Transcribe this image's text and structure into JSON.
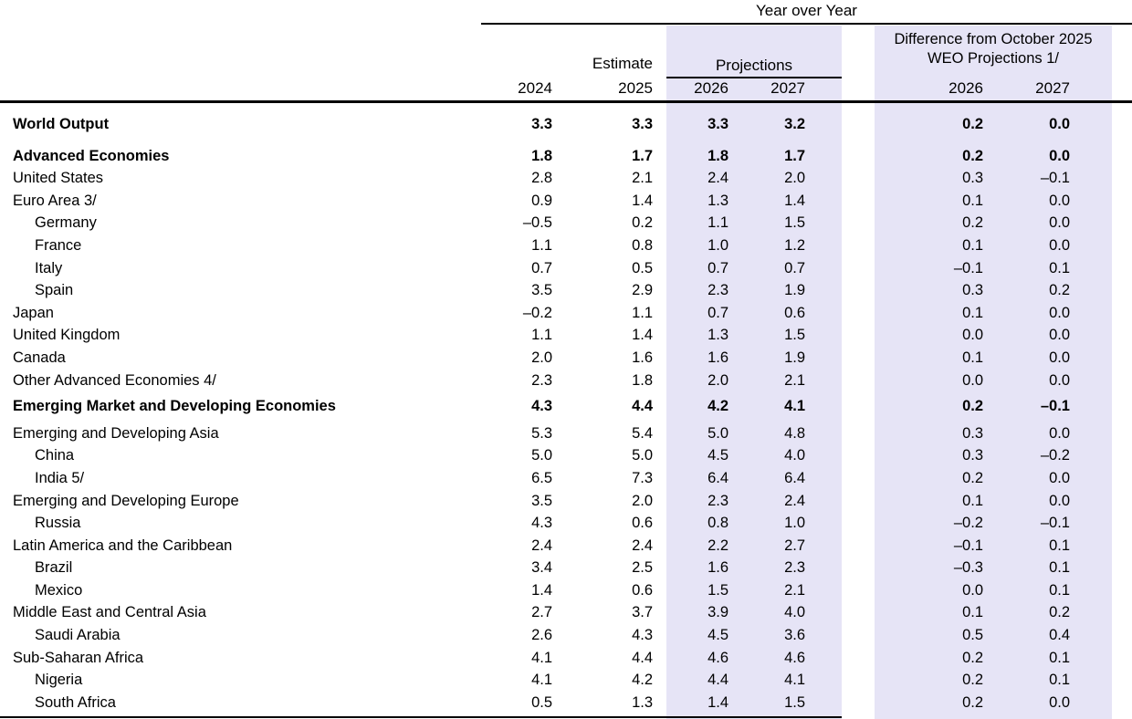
{
  "colors": {
    "highlight_band": "#E6E4F6",
    "rule": "#000000"
  },
  "table": {
    "top_header": "Year over Year",
    "estimate_label": "Estimate",
    "projections_label": "Projections",
    "difference_label_line1": "Difference from October 2025",
    "difference_label_line2": "WEO Projections 1/",
    "year_columns": [
      "2024",
      "2025",
      "2026",
      "2027",
      "2026",
      "2027"
    ],
    "rows": [
      {
        "label": "World Output",
        "bold": true,
        "indent": 0,
        "space_before": 0,
        "values": [
          "3.3",
          "3.3",
          "3.3",
          "3.2",
          "0.2",
          "0.0"
        ]
      },
      {
        "label": "Advanced Economies",
        "bold": true,
        "indent": 0,
        "space_before": 10,
        "values": [
          "1.8",
          "1.7",
          "1.8",
          "1.7",
          "0.2",
          "0.0"
        ]
      },
      {
        "label": "United States",
        "bold": false,
        "indent": 0,
        "space_before": 0,
        "values": [
          "2.8",
          "2.1",
          "2.4",
          "2.0",
          "0.3",
          "–0.1"
        ]
      },
      {
        "label": "Euro Area 3/",
        "bold": false,
        "indent": 0,
        "space_before": 0,
        "values": [
          "0.9",
          "1.4",
          "1.3",
          "1.4",
          "0.1",
          "0.0"
        ]
      },
      {
        "label": "Germany",
        "bold": false,
        "indent": 1,
        "space_before": 0,
        "values": [
          "–0.5",
          "0.2",
          "1.1",
          "1.5",
          "0.2",
          "0.0"
        ]
      },
      {
        "label": "France",
        "bold": false,
        "indent": 1,
        "space_before": 0,
        "values": [
          "1.1",
          "0.8",
          "1.0",
          "1.2",
          "0.1",
          "0.0"
        ]
      },
      {
        "label": "Italy",
        "bold": false,
        "indent": 1,
        "space_before": 0,
        "values": [
          "0.7",
          "0.5",
          "0.7",
          "0.7",
          "–0.1",
          "0.1"
        ]
      },
      {
        "label": "Spain",
        "bold": false,
        "indent": 1,
        "space_before": 0,
        "values": [
          "3.5",
          "2.9",
          "2.3",
          "1.9",
          "0.3",
          "0.2"
        ]
      },
      {
        "label": "Japan",
        "bold": false,
        "indent": 0,
        "space_before": 0,
        "values": [
          "–0.2",
          "1.1",
          "0.7",
          "0.6",
          "0.1",
          "0.0"
        ]
      },
      {
        "label": "United Kingdom",
        "bold": false,
        "indent": 0,
        "space_before": 0,
        "values": [
          "1.1",
          "1.4",
          "1.3",
          "1.5",
          "0.0",
          "0.0"
        ]
      },
      {
        "label": "Canada",
        "bold": false,
        "indent": 0,
        "space_before": 0,
        "values": [
          "2.0",
          "1.6",
          "1.6",
          "1.9",
          "0.1",
          "0.0"
        ]
      },
      {
        "label": "Other Advanced Economies 4/",
        "bold": false,
        "indent": 0,
        "space_before": 0,
        "values": [
          "2.3",
          "1.8",
          "2.0",
          "2.1",
          "0.0",
          "0.0"
        ]
      },
      {
        "label": "Emerging Market and Developing Economies",
        "bold": true,
        "indent": 0,
        "space_before": 4,
        "values": [
          "4.3",
          "4.4",
          "4.2",
          "4.1",
          "0.2",
          "–0.1"
        ]
      },
      {
        "label": "Emerging and Developing Asia",
        "bold": false,
        "indent": 0,
        "space_before": 5,
        "values": [
          "5.3",
          "5.4",
          "5.0",
          "4.8",
          "0.3",
          "0.0"
        ]
      },
      {
        "label": "China",
        "bold": false,
        "indent": 1,
        "space_before": 0,
        "values": [
          "5.0",
          "5.0",
          "4.5",
          "4.0",
          "0.3",
          "–0.2"
        ]
      },
      {
        "label": "India 5/",
        "bold": false,
        "indent": 1,
        "space_before": 0,
        "values": [
          "6.5",
          "7.3",
          "6.4",
          "6.4",
          "0.2",
          "0.0"
        ]
      },
      {
        "label": "Emerging and Developing Europe",
        "bold": false,
        "indent": 0,
        "space_before": 0,
        "values": [
          "3.5",
          "2.0",
          "2.3",
          "2.4",
          "0.1",
          "0.0"
        ]
      },
      {
        "label": "Russia",
        "bold": false,
        "indent": 1,
        "space_before": 0,
        "values": [
          "4.3",
          "0.6",
          "0.8",
          "1.0",
          "–0.2",
          "–0.1"
        ]
      },
      {
        "label": "Latin America and the Caribbean",
        "bold": false,
        "indent": 0,
        "space_before": 0,
        "values": [
          "2.4",
          "2.4",
          "2.2",
          "2.7",
          "–0.1",
          "0.1"
        ]
      },
      {
        "label": "Brazil",
        "bold": false,
        "indent": 1,
        "space_before": 0,
        "values": [
          "3.4",
          "2.5",
          "1.6",
          "2.3",
          "–0.3",
          "0.1"
        ]
      },
      {
        "label": "Mexico",
        "bold": false,
        "indent": 1,
        "space_before": 0,
        "values": [
          "1.4",
          "0.6",
          "1.5",
          "2.1",
          "0.0",
          "0.1"
        ]
      },
      {
        "label": "Middle East and Central Asia",
        "bold": false,
        "indent": 0,
        "space_before": 0,
        "values": [
          "2.7",
          "3.7",
          "3.9",
          "4.0",
          "0.1",
          "0.2"
        ]
      },
      {
        "label": "Saudi Arabia",
        "bold": false,
        "indent": 1,
        "space_before": 0,
        "values": [
          "2.6",
          "4.3",
          "4.5",
          "3.6",
          "0.5",
          "0.4"
        ]
      },
      {
        "label": "Sub-Saharan Africa",
        "bold": false,
        "indent": 0,
        "space_before": 0,
        "values": [
          "4.1",
          "4.4",
          "4.6",
          "4.6",
          "0.2",
          "0.1"
        ]
      },
      {
        "label": "Nigeria",
        "bold": false,
        "indent": 1,
        "space_before": 0,
        "values": [
          "4.1",
          "4.2",
          "4.4",
          "4.1",
          "0.2",
          "0.1"
        ]
      },
      {
        "label": "South Africa",
        "bold": false,
        "indent": 1,
        "space_before": 0,
        "values": [
          "0.5",
          "1.3",
          "1.4",
          "1.5",
          "0.2",
          "0.0"
        ]
      }
    ]
  }
}
